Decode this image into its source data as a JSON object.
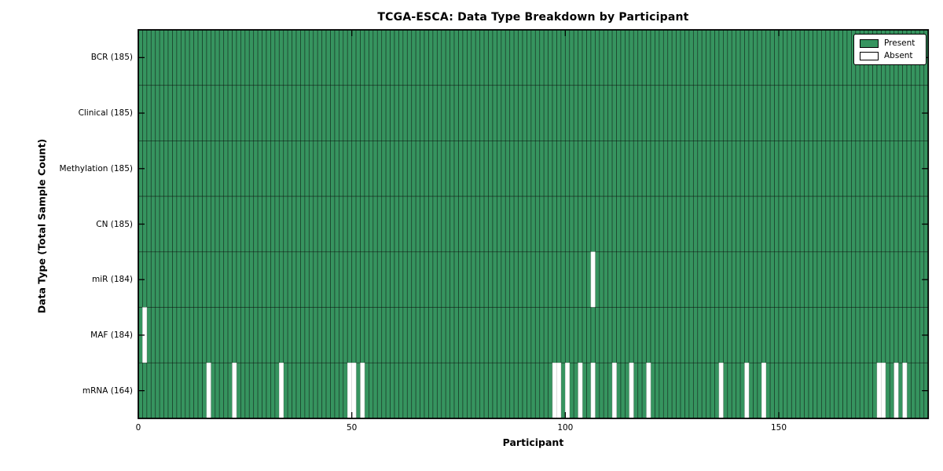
{
  "chart_data": {
    "type": "heatmap",
    "title": "TCGA-ESCA: Data Type Breakdown by Participant",
    "xlabel": "Participant",
    "ylabel": "Data Type (Total Sample Count)",
    "x_tick_labels": [
      "0",
      "50",
      "100",
      "150"
    ],
    "x_tick_values": [
      0,
      50,
      100,
      150
    ],
    "x_range": [
      0,
      185
    ],
    "n_participants": 185,
    "grid": false,
    "legend_position": "upper right",
    "colors": {
      "present": "#36945f",
      "absent": "#ffffff",
      "cell_edge": "rgba(0,0,0,0.5)",
      "absent_edge": "#c8c8c8",
      "spine": "#000000"
    },
    "legend": [
      {
        "label": "Present",
        "color": "#36945f",
        "edge": "#000000"
      },
      {
        "label": "Absent",
        "color": "#ffffff",
        "edge": "#000000"
      }
    ],
    "rows": [
      {
        "label": "BCR (185)",
        "data_type": "BCR",
        "present_count": 185,
        "absent_participants": []
      },
      {
        "label": "Clinical (185)",
        "data_type": "Clinical",
        "present_count": 185,
        "absent_participants": []
      },
      {
        "label": "Methylation (185)",
        "data_type": "Methylation",
        "present_count": 185,
        "absent_participants": []
      },
      {
        "label": "CN (185)",
        "data_type": "CN",
        "present_count": 185,
        "absent_participants": []
      },
      {
        "label": "miR (184)",
        "data_type": "miR",
        "present_count": 184,
        "absent_participants": [
          106
        ]
      },
      {
        "label": "MAF (184)",
        "data_type": "MAF",
        "present_count": 184,
        "absent_participants": [
          1
        ]
      },
      {
        "label": "mRNA (164)",
        "data_type": "mRNA",
        "present_count": 164,
        "absent_participants": [
          16,
          22,
          33,
          49,
          50,
          52,
          97,
          98,
          100,
          103,
          106,
          111,
          115,
          119,
          136,
          142,
          146,
          173,
          174,
          177,
          179
        ]
      }
    ]
  }
}
